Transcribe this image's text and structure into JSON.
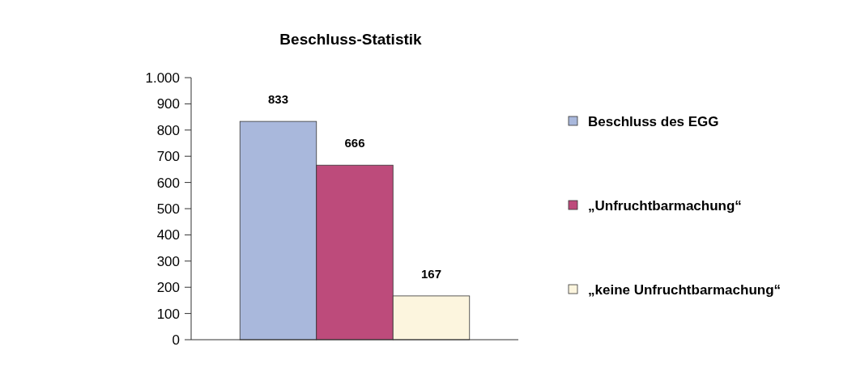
{
  "chart_data": {
    "type": "bar",
    "title": "Beschluss-Statistik",
    "categories": [
      null
    ],
    "series": [
      {
        "name": "Beschluss des EGG",
        "color": "#a9b8dc",
        "values": [
          833
        ]
      },
      {
        "name": "„Unfruchtbarmachung“",
        "color": "#bd4b7b",
        "values": [
          666
        ]
      },
      {
        "name": "„keine Unfruchtbarmachung“",
        "color": "#fcf5de",
        "values": [
          167
        ]
      }
    ],
    "ylim": [
      0,
      1000
    ],
    "yticks": [
      0,
      100,
      200,
      300,
      400,
      500,
      600,
      700,
      800,
      900,
      {
        "value": 1000,
        "label": "1.000"
      }
    ],
    "data_labels": true,
    "legend": "right",
    "grid": false
  }
}
